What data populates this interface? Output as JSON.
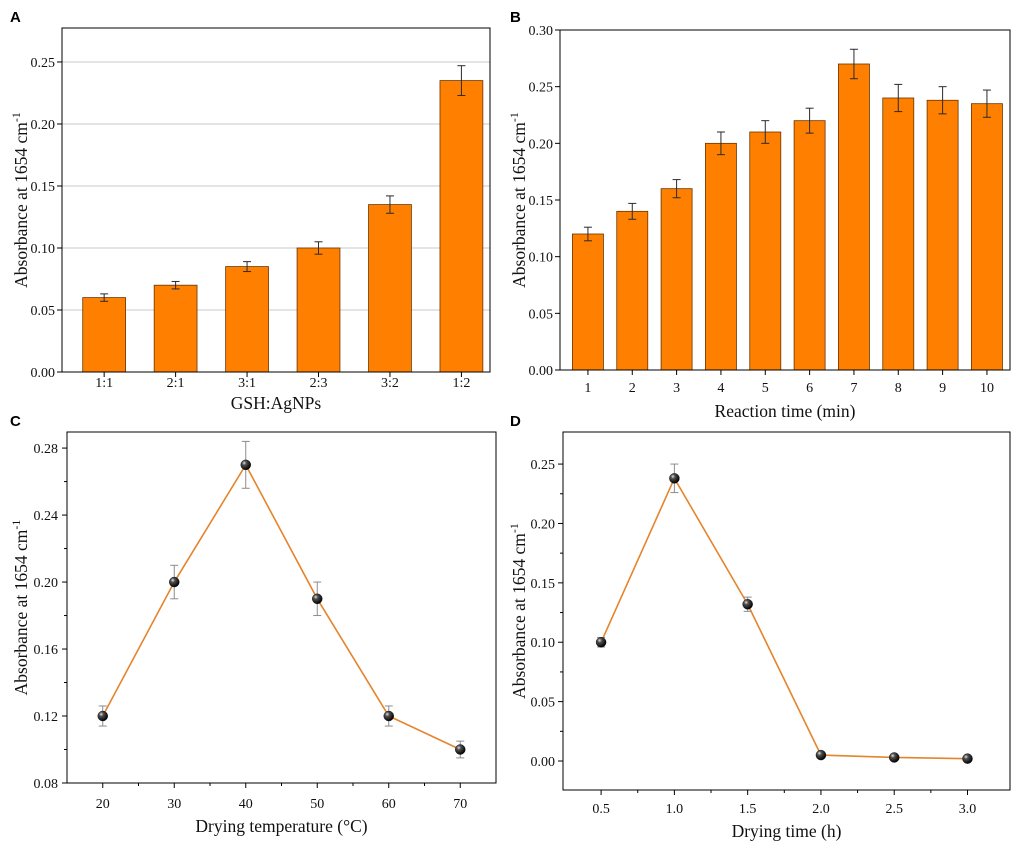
{
  "chart_data": [
    {
      "panel": "A",
      "type": "bar",
      "categories": [
        "1:1",
        "2:1",
        "3:1",
        "2:3",
        "3:2",
        "1:2"
      ],
      "values": [
        0.06,
        0.07,
        0.085,
        0.1,
        0.135,
        0.235
      ],
      "errors": [
        0.003,
        0.003,
        0.004,
        0.005,
        0.007,
        0.012
      ],
      "xlabel": "GSH:AgNPs",
      "ylabel": "Absorbance at 1654 cm",
      "ylabel_sup": "-1",
      "ylim": [
        0,
        0.2774
      ],
      "yticks": [
        0,
        0.05,
        0.1,
        0.15,
        0.2,
        0.25
      ],
      "ytick_labels": [
        "0.00",
        "0.05",
        "0.10",
        "0.15",
        "0.20",
        "0.25"
      ],
      "grid": true,
      "colors": {
        "bar": "#FF8000",
        "bar_edge": "#6B3300",
        "error": "#2a2a2a",
        "grid": "#c8c8c8"
      }
    },
    {
      "panel": "B",
      "type": "bar",
      "categories": [
        "1",
        "2",
        "3",
        "4",
        "5",
        "6",
        "7",
        "8",
        "9",
        "10"
      ],
      "values": [
        0.12,
        0.14,
        0.16,
        0.2,
        0.21,
        0.22,
        0.27,
        0.24,
        0.238,
        0.235
      ],
      "errors": [
        0.006,
        0.007,
        0.008,
        0.01,
        0.01,
        0.011,
        0.013,
        0.012,
        0.012,
        0.012
      ],
      "xlabel": "Reaction time (min)",
      "ylabel": "Absorbance at 1654 cm",
      "ylabel_sup": "-1",
      "ylim": [
        0,
        0.3
      ],
      "yticks": [
        0,
        0.05,
        0.1,
        0.15,
        0.2,
        0.25,
        0.3
      ],
      "ytick_labels": [
        "0.00",
        "0.05",
        "0.10",
        "0.15",
        "0.20",
        "0.25",
        "0.30"
      ],
      "grid": false,
      "colors": {
        "bar": "#FF8000",
        "bar_edge": "#6B3300",
        "error": "#2a2a2a",
        "grid": "#c8c8c8"
      }
    },
    {
      "panel": "C",
      "type": "line",
      "x": [
        20,
        30,
        40,
        50,
        60,
        70
      ],
      "xtick_labels": [
        "20",
        "30",
        "40",
        "50",
        "60",
        "70"
      ],
      "y": [
        0.12,
        0.2,
        0.27,
        0.19,
        0.12,
        0.1
      ],
      "errors": [
        0.006,
        0.01,
        0.014,
        0.01,
        0.006,
        0.005
      ],
      "xlabel": "Drying temperature (°C)",
      "ylabel": "Absorbance at 1654 cm",
      "ylabel_sup": "-1",
      "xlim": [
        15,
        75
      ],
      "ylim": [
        0.08,
        0.2896
      ],
      "yticks": [
        0.08,
        0.12,
        0.16,
        0.2,
        0.24,
        0.28
      ],
      "ytick_labels": [
        "0.08",
        "0.12",
        "0.16",
        "0.20",
        "0.24",
        "0.28"
      ],
      "grid": false,
      "colors": {
        "line": "#E5842C",
        "error": "#8c8c8c",
        "marker": "#000000"
      }
    },
    {
      "panel": "D",
      "type": "line",
      "x": [
        0.5,
        1.0,
        1.5,
        2.0,
        2.5,
        3.0
      ],
      "xtick_labels": [
        "0.5",
        "1.0",
        "1.5",
        "2.0",
        "2.5",
        "3.0"
      ],
      "y": [
        0.1,
        0.238,
        0.132,
        0.005,
        0.003,
        0.002
      ],
      "errors": [
        0.004,
        0.012,
        0.006,
        0.001,
        0.001,
        0.001
      ],
      "xlabel": "Drying time (h)",
      "ylabel": "Absorbance at 1654 cm",
      "ylabel_sup": "-1",
      "xlim": [
        0.24,
        3.29
      ],
      "ylim": [
        -0.0244,
        0.277
      ],
      "yticks": [
        0,
        0.05,
        0.1,
        0.15,
        0.2,
        0.25
      ],
      "ytick_labels": [
        "0.00",
        "0.05",
        "0.10",
        "0.15",
        "0.20",
        "0.25"
      ],
      "grid": false,
      "colors": {
        "line": "#E5842C",
        "error": "#8c8c8c",
        "marker": "#000000"
      }
    }
  ]
}
